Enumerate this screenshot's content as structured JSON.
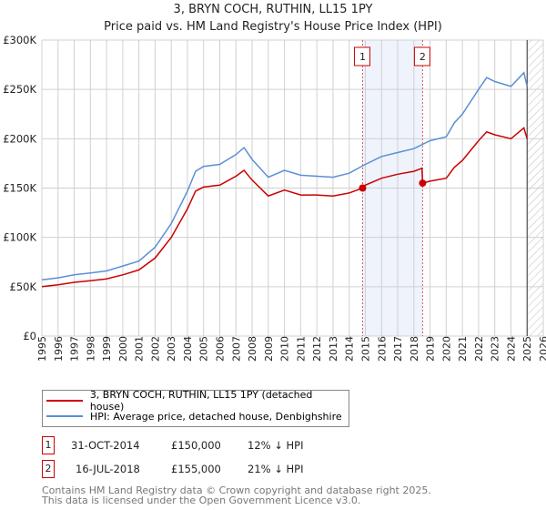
{
  "chart_data": {
    "type": "line",
    "title": "3, BRYN COCH, RUTHIN, LL15 1PY",
    "subtitle": "Price paid vs. HM Land Registry's House Price Index (HPI)",
    "xlim": [
      1995,
      2026
    ],
    "ylim": [
      0,
      300000
    ],
    "x_ticks": [
      "1995",
      "1996",
      "1997",
      "1998",
      "1999",
      "2000",
      "2001",
      "2002",
      "2003",
      "2004",
      "2005",
      "2006",
      "2007",
      "2008",
      "2009",
      "2010",
      "2011",
      "2012",
      "2013",
      "2014",
      "2015",
      "2016",
      "2017",
      "2018",
      "2019",
      "2020",
      "2021",
      "2022",
      "2023",
      "2024",
      "2025",
      "2026"
    ],
    "y_ticks": [
      {
        "v": 0,
        "label": "£0"
      },
      {
        "v": 50000,
        "label": "£50K"
      },
      {
        "v": 100000,
        "label": "£100K"
      },
      {
        "v": 150000,
        "label": "£150K"
      },
      {
        "v": 200000,
        "label": "£200K"
      },
      {
        "v": 250000,
        "label": "£250K"
      },
      {
        "v": 300000,
        "label": "£300K"
      }
    ],
    "grid": true,
    "shaded_period": [
      2014.83,
      2018.54
    ],
    "hatched_from": 2025.0,
    "series": [
      {
        "name": "3, BRYN COCH, RUTHIN, LL15 1PY (detached house)",
        "color": "#cc0000",
        "x": [
          1995,
          1996,
          1997,
          1998,
          1999,
          2000,
          2001,
          2002,
          2003,
          2004,
          2004.5,
          2005,
          2006,
          2007,
          2007.5,
          2008,
          2009,
          2010,
          2011,
          2012,
          2013,
          2014,
          2014.83,
          2015,
          2016,
          2017,
          2018,
          2018.5,
          2018.54,
          2019,
          2020,
          2020.5,
          2021,
          2022,
          2022.5,
          2023,
          2024,
          2024.8,
          2025
        ],
        "y": [
          50000,
          52000,
          54500,
          56000,
          58000,
          62000,
          67000,
          79000,
          100000,
          129000,
          147000,
          151000,
          153000,
          162000,
          168000,
          158000,
          142000,
          148000,
          143000,
          143000,
          142000,
          145000,
          150000,
          153000,
          160000,
          164000,
          167000,
          170000,
          155000,
          157000,
          160000,
          171000,
          178000,
          198000,
          207000,
          204000,
          200000,
          211000,
          200000
        ]
      },
      {
        "name": "HPI: Average price, detached house, Denbighshire",
        "color": "#5b8fd6",
        "x": [
          1995,
          1996,
          1997,
          1998,
          1999,
          2000,
          2001,
          2002,
          2003,
          2004,
          2004.5,
          2005,
          2006,
          2007,
          2007.5,
          2008,
          2009,
          2010,
          2011,
          2012,
          2013,
          2014,
          2015,
          2016,
          2017,
          2018,
          2019,
          2020,
          2020.5,
          2021,
          2022,
          2022.5,
          2023,
          2024,
          2024.8,
          2025
        ],
        "y": [
          57000,
          59000,
          62000,
          64000,
          66000,
          71000,
          76000,
          90000,
          114000,
          147000,
          167000,
          172000,
          174000,
          184000,
          191000,
          179000,
          161000,
          168000,
          163000,
          162000,
          161000,
          165000,
          174000,
          182000,
          186000,
          190000,
          198000,
          202000,
          216000,
          225000,
          250000,
          262000,
          258000,
          253000,
          267000,
          253000
        ]
      }
    ],
    "sales": [
      {
        "label": "1",
        "x": 2014.83,
        "y": 150000
      },
      {
        "label": "2",
        "x": 2018.54,
        "y": 155000
      }
    ]
  },
  "legend": {
    "property": "3, BRYN COCH, RUTHIN, LL15 1PY (detached house)",
    "hpi": "HPI: Average price, detached house, Denbighshire"
  },
  "transactions": [
    {
      "num": "1",
      "date": "31-OCT-2014",
      "price": "£150,000",
      "hpi": "12% ↓ HPI"
    },
    {
      "num": "2",
      "date": "16-JUL-2018",
      "price": "£155,000",
      "hpi": "21% ↓ HPI"
    }
  ],
  "footer": {
    "line1": "Contains HM Land Registry data © Crown copyright and database right 2025.",
    "line2": "This data is licensed under the Open Government Licence v3.0."
  }
}
